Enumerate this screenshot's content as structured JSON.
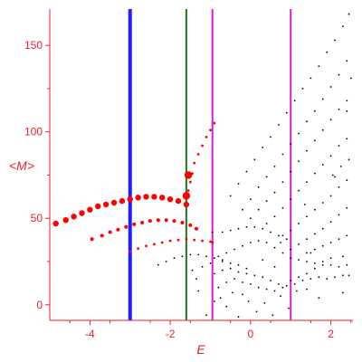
{
  "chart_data": {
    "type": "scatter",
    "xlabel": "E",
    "ylabel": "<M>",
    "xlim": [
      -5.0,
      2.55
    ],
    "ylim": [
      -9,
      171
    ],
    "x_ticks": [
      -4,
      -2,
      0,
      2
    ],
    "x_tick_labels": [
      "-4",
      "-2",
      "0",
      "2"
    ],
    "y_ticks": [
      0,
      50,
      100,
      150
    ],
    "y_tick_labels": [
      "0",
      "50",
      "100",
      "150"
    ],
    "grid": false,
    "legend": "none",
    "axis_color": "#e8202a",
    "vertical_lines": [
      {
        "x": -3.0,
        "color": "#1f1fff"
      },
      {
        "x": -1.6,
        "color": "#1a7a1a"
      },
      {
        "x": -0.95,
        "color": "#d41fd4"
      },
      {
        "x": 1.0,
        "color": "#d41fd4"
      }
    ],
    "series": [
      {
        "color": "#ff0000",
        "style": "large",
        "points": [
          [
            -4.85,
            47
          ],
          [
            -4.6,
            49
          ],
          [
            -4.4,
            51
          ],
          [
            -4.2,
            53
          ],
          [
            -4.0,
            55
          ],
          [
            -3.8,
            57
          ],
          [
            -3.6,
            58
          ],
          [
            -3.4,
            59
          ],
          [
            -3.2,
            60
          ],
          [
            -3.0,
            61
          ],
          [
            -2.8,
            62
          ],
          [
            -2.6,
            62.5
          ],
          [
            -2.4,
            62.5
          ],
          [
            -2.2,
            62
          ],
          [
            -2.0,
            61
          ],
          [
            -1.8,
            60
          ],
          [
            -1.6,
            58
          ]
        ]
      },
      {
        "color": "#ff0000",
        "style": "medium",
        "points": [
          [
            -3.95,
            38
          ],
          [
            -3.7,
            40
          ],
          [
            -3.5,
            42
          ],
          [
            -3.3,
            43.5
          ],
          [
            -3.1,
            45
          ],
          [
            -2.9,
            46.5
          ],
          [
            -2.7,
            47.5
          ],
          [
            -2.5,
            48.5
          ],
          [
            -2.3,
            49
          ],
          [
            -2.1,
            49
          ],
          [
            -1.9,
            48.5
          ],
          [
            -1.7,
            47.5
          ],
          [
            -1.5,
            46
          ],
          [
            -1.35,
            44
          ]
        ]
      },
      {
        "color": "#ff0000",
        "style": "small",
        "points": [
          [
            -3.0,
            31
          ],
          [
            -2.8,
            32.5
          ],
          [
            -2.6,
            34
          ],
          [
            -2.4,
            35
          ],
          [
            -2.2,
            36
          ],
          [
            -2.0,
            37
          ],
          [
            -1.8,
            37.5
          ],
          [
            -1.6,
            38
          ],
          [
            -1.4,
            37.5
          ],
          [
            -1.2,
            37
          ],
          [
            -1.0,
            36.5
          ],
          [
            -0.95,
            36
          ]
        ]
      },
      {
        "color": "#ff0000",
        "style": "small",
        "points": [
          [
            -1.55,
            66
          ],
          [
            -1.5,
            71
          ],
          [
            -1.45,
            76
          ],
          [
            -1.4,
            82
          ],
          [
            -1.3,
            87
          ],
          [
            -1.2,
            92
          ],
          [
            -1.1,
            97
          ],
          [
            -1.0,
            101
          ],
          [
            -0.9,
            105
          ]
        ]
      },
      {
        "color": "#ff0000",
        "style": "big",
        "points": [
          [
            -1.55,
            75
          ],
          [
            -1.6,
            63
          ]
        ]
      },
      {
        "color": "#000000",
        "style": "tiny",
        "points": [
          [
            -0.5,
            63
          ],
          [
            -0.3,
            70
          ],
          [
            -0.1,
            77
          ],
          [
            0.1,
            84
          ],
          [
            0.3,
            91
          ],
          [
            0.5,
            97
          ],
          [
            0.7,
            104
          ],
          [
            0.9,
            111
          ],
          [
            1.1,
            118
          ],
          [
            1.3,
            125
          ],
          [
            1.5,
            131
          ],
          [
            1.7,
            138
          ],
          [
            1.9,
            146
          ],
          [
            2.1,
            153
          ],
          [
            2.3,
            161
          ],
          [
            2.45,
            168
          ]
        ]
      },
      {
        "color": "#000000",
        "style": "tiny",
        "points": [
          [
            -0.2,
            55
          ],
          [
            0.0,
            61
          ],
          [
            0.2,
            68
          ],
          [
            0.4,
            74
          ],
          [
            0.6,
            80
          ],
          [
            0.8,
            87
          ],
          [
            1.0,
            93
          ],
          [
            1.2,
            99
          ],
          [
            1.4,
            106
          ],
          [
            1.6,
            112
          ],
          [
            1.8,
            119
          ],
          [
            2.0,
            126
          ],
          [
            2.2,
            133
          ],
          [
            2.4,
            141
          ]
        ]
      },
      {
        "color": "#000000",
        "style": "tiny",
        "points": [
          [
            0.0,
            50
          ],
          [
            0.2,
            55
          ],
          [
            0.4,
            60
          ],
          [
            0.6,
            65
          ],
          [
            0.8,
            71
          ],
          [
            1.0,
            77
          ],
          [
            1.2,
            83
          ],
          [
            1.4,
            89
          ],
          [
            1.6,
            95
          ],
          [
            1.8,
            101
          ],
          [
            2.0,
            107
          ],
          [
            2.2,
            113
          ],
          [
            2.4,
            118
          ]
        ]
      },
      {
        "color": "#000000",
        "style": "tiny",
        "points": [
          [
            0.4,
            47
          ],
          [
            0.6,
            51
          ],
          [
            0.8,
            56
          ],
          [
            1.0,
            61
          ],
          [
            1.2,
            66
          ],
          [
            1.4,
            71
          ],
          [
            1.6,
            76
          ],
          [
            1.8,
            81
          ],
          [
            2.0,
            86
          ],
          [
            2.2,
            92
          ],
          [
            2.4,
            96
          ]
        ]
      },
      {
        "color": "#000000",
        "style": "tiny",
        "points": [
          [
            0.8,
            40
          ],
          [
            1.0,
            43
          ],
          [
            1.2,
            47
          ],
          [
            1.4,
            51
          ],
          [
            1.6,
            55
          ],
          [
            1.8,
            59
          ],
          [
            2.0,
            63
          ],
          [
            2.2,
            68
          ],
          [
            2.4,
            72
          ]
        ]
      },
      {
        "color": "#000000",
        "style": "tiny",
        "points": [
          [
            1.0,
            32
          ],
          [
            1.2,
            35
          ],
          [
            1.4,
            38
          ],
          [
            1.6,
            41
          ],
          [
            1.8,
            44
          ],
          [
            2.0,
            48
          ],
          [
            2.2,
            52
          ],
          [
            2.4,
            56
          ]
        ]
      },
      {
        "color": "#000000",
        "style": "tiny",
        "points": [
          [
            1.4,
            30
          ],
          [
            1.6,
            32
          ],
          [
            1.8,
            34
          ],
          [
            2.0,
            36
          ],
          [
            2.2,
            38
          ],
          [
            2.4,
            40
          ]
        ]
      },
      {
        "color": "#000000",
        "style": "tiny",
        "points": [
          [
            -2.3,
            23
          ],
          [
            -2.1,
            25
          ],
          [
            -1.9,
            27
          ],
          [
            -1.7,
            28
          ],
          [
            -1.5,
            29
          ],
          [
            -1.3,
            29
          ],
          [
            -1.1,
            28
          ],
          [
            -0.9,
            27
          ],
          [
            -0.7,
            26
          ],
          [
            -0.5,
            24
          ],
          [
            -0.3,
            23
          ],
          [
            -0.1,
            21
          ]
        ]
      },
      {
        "color": "#000000",
        "style": "tiny",
        "points": [
          [
            -0.95,
            42
          ],
          [
            -0.7,
            42
          ],
          [
            -0.5,
            43
          ],
          [
            -0.3,
            44
          ],
          [
            -0.1,
            45
          ],
          [
            0.1,
            45
          ],
          [
            0.3,
            44
          ],
          [
            0.5,
            42
          ],
          [
            0.7,
            40
          ],
          [
            0.9,
            38
          ]
        ]
      },
      {
        "color": "#000000",
        "style": "tiny",
        "points": [
          [
            -0.9,
            18
          ],
          [
            -0.7,
            20
          ],
          [
            -0.5,
            21
          ],
          [
            -0.3,
            19
          ],
          [
            -0.1,
            18
          ],
          [
            0.1,
            17
          ],
          [
            0.3,
            16
          ],
          [
            0.5,
            14
          ],
          [
            0.7,
            12
          ],
          [
            0.9,
            11
          ],
          [
            1.1,
            12
          ],
          [
            1.3,
            14
          ],
          [
            1.5,
            15
          ],
          [
            1.7,
            16
          ],
          [
            1.9,
            15
          ],
          [
            2.1,
            16
          ],
          [
            2.3,
            17
          ],
          [
            2.45,
            17
          ]
        ]
      },
      {
        "color": "#000000",
        "style": "tiny",
        "points": [
          [
            -0.8,
            10
          ],
          [
            -0.6,
            13
          ],
          [
            -0.4,
            15
          ],
          [
            -0.2,
            13
          ],
          [
            0.0,
            12
          ],
          [
            0.2,
            10
          ],
          [
            0.4,
            9
          ],
          [
            0.6,
            8
          ],
          [
            0.8,
            10
          ],
          [
            1.0,
            14
          ],
          [
            1.2,
            16
          ],
          [
            1.4,
            18
          ],
          [
            1.6,
            21
          ],
          [
            1.8,
            23
          ],
          [
            2.0,
            23
          ],
          [
            2.2,
            22
          ],
          [
            2.4,
            23
          ]
        ]
      },
      {
        "color": "#000000",
        "style": "tiny",
        "points": [
          [
            -1.45,
            20
          ],
          [
            -1.2,
            22
          ],
          [
            -1.0,
            24
          ],
          [
            -0.8,
            28
          ],
          [
            -0.6,
            30
          ],
          [
            -0.4,
            32
          ],
          [
            -0.2,
            34
          ],
          [
            0.0,
            36
          ],
          [
            0.2,
            37
          ],
          [
            0.4,
            36
          ],
          [
            0.6,
            33
          ],
          [
            0.8,
            30
          ],
          [
            1.0,
            27
          ],
          [
            1.2,
            26
          ],
          [
            1.4,
            25
          ],
          [
            1.6,
            24
          ],
          [
            1.8,
            25
          ],
          [
            2.0,
            27
          ]
        ]
      },
      {
        "color": "#000000",
        "style": "tiny",
        "points": [
          [
            -0.9,
            2
          ],
          [
            -0.75,
            4
          ],
          [
            -0.6,
            -1
          ],
          [
            -0.45,
            7
          ],
          [
            -0.2,
            6
          ],
          [
            -0.05,
            2
          ],
          [
            0.15,
            -4
          ],
          [
            0.35,
            1
          ],
          [
            0.55,
            -6
          ],
          [
            0.75,
            5
          ],
          [
            0.95,
            -2
          ],
          [
            1.15,
            8
          ],
          [
            1.4,
            9
          ],
          [
            1.7,
            4
          ],
          [
            2.3,
            7
          ],
          [
            -1.3,
            8
          ],
          [
            -1.1,
            -6
          ],
          [
            -0.7,
            25
          ],
          [
            0.6,
            22
          ],
          [
            1.5,
            30
          ],
          [
            0.3,
            26
          ],
          [
            2.3,
            28
          ],
          [
            0.75,
            36
          ],
          [
            1.35,
            58
          ],
          [
            2.1,
            74
          ],
          [
            2.25,
            80
          ],
          [
            2.45,
            84
          ],
          [
            2.4,
            112
          ],
          [
            2.5,
            131
          ],
          [
            2.05,
            75
          ],
          [
            -1.35,
            15
          ],
          [
            -0.3,
            -7
          ]
        ]
      }
    ]
  }
}
